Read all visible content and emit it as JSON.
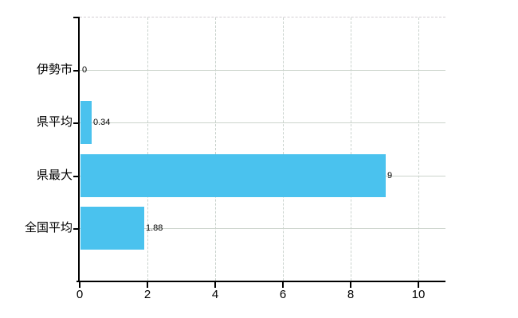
{
  "chart_data": {
    "type": "bar",
    "orientation": "horizontal",
    "title": "",
    "xlabel": "",
    "ylabel": "",
    "categories": [
      "伊勢市",
      "県平均",
      "県最大",
      "全国平均"
    ],
    "values": [
      0,
      0.34,
      9,
      1.88
    ],
    "value_labels": [
      "0",
      "0.34",
      "9",
      "1.88"
    ],
    "x_ticks": [
      0,
      2,
      4,
      6,
      8,
      10
    ],
    "x_tick_labels": [
      "0",
      "2",
      "4",
      "6",
      "8",
      "10"
    ],
    "xlim": [
      0,
      10.8
    ],
    "grid": true,
    "legend": false,
    "colors": {
      "bar": "#4ac2ee",
      "grid_horizontal": "#ccd4cc",
      "grid_vertical_dashed": "#c9d2cd",
      "top_border_dashed": "#d2cdd2",
      "axis": "#000000",
      "text": "#000000",
      "background": "#ffffff"
    }
  }
}
